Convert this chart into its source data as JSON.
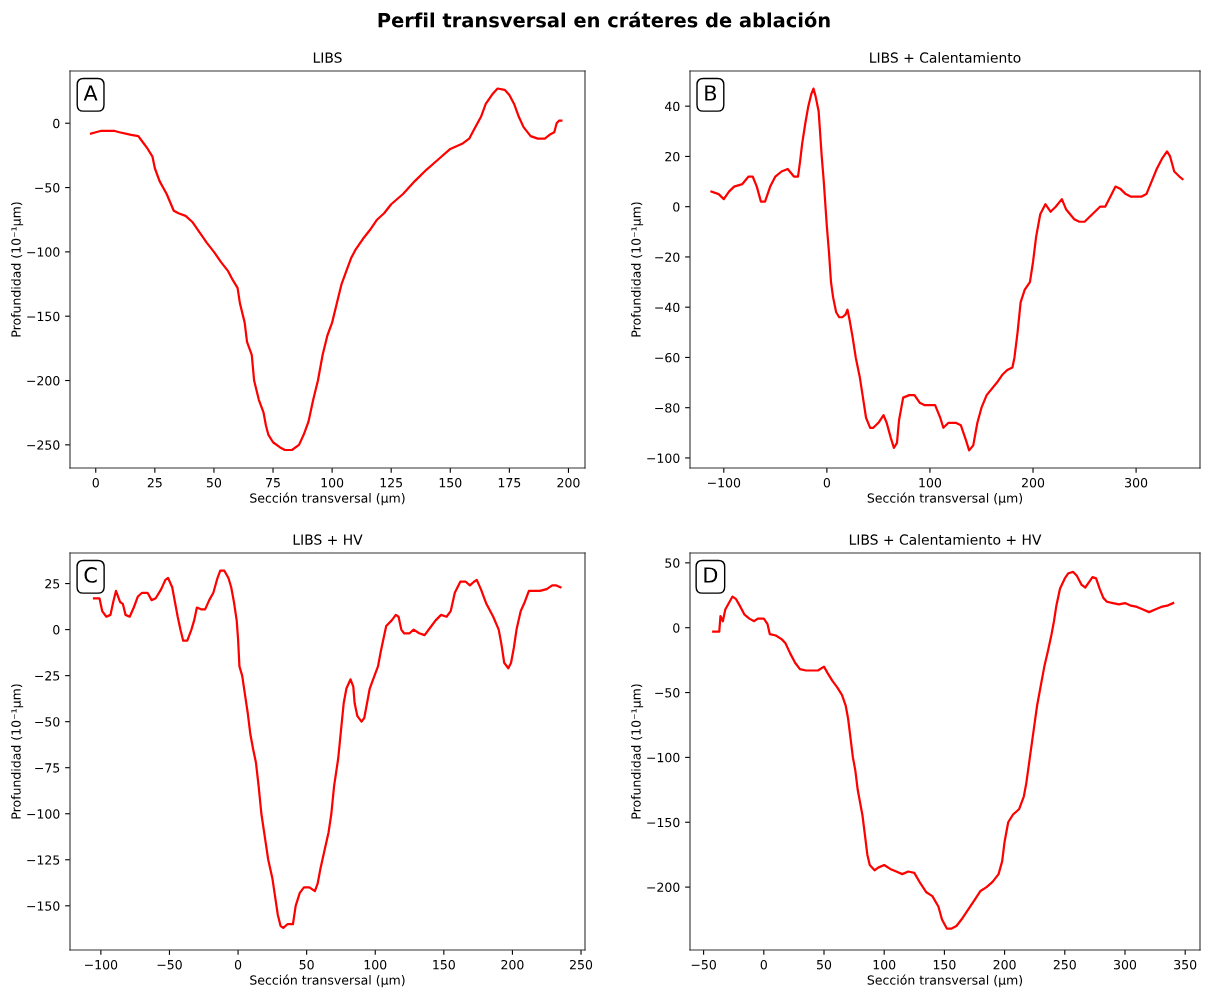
{
  "chart_data": [
    {
      "type": "line",
      "title": "LIBS",
      "xlabel": "Sección transversal (μm)",
      "ylabel": "Profundidad (10⁻¹μm)",
      "annotations": [
        "Perfil transversal en cráteres de ablación",
        "A"
      ],
      "xlim": [
        -10.9,
        207
      ],
      "ylim": [
        -268,
        40.6
      ],
      "xticks": [
        0,
        25,
        50,
        75,
        100,
        125,
        150,
        175,
        200
      ],
      "yticks": [
        -250,
        -200,
        -150,
        -100,
        -50,
        0
      ],
      "series": [
        {
          "color": "#ff0000",
          "x": [
            -2,
            0,
            2,
            8,
            10,
            15,
            18,
            20,
            22,
            24,
            25,
            27,
            30,
            33,
            35,
            38,
            41,
            44,
            47,
            50,
            53,
            56,
            58,
            60,
            61,
            63,
            64,
            66,
            67,
            69,
            71,
            72,
            73,
            75,
            78,
            80,
            83,
            86,
            88,
            90,
            92,
            94,
            96,
            98,
            100,
            102,
            104,
            106,
            108,
            110,
            113,
            116,
            119,
            122,
            125,
            130,
            135,
            140,
            145,
            150,
            155,
            158,
            160,
            163,
            165,
            168,
            170,
            173,
            175,
            177,
            179,
            181,
            184,
            187,
            190,
            192,
            194,
            195,
            196,
            197
          ],
          "values": [
            -8,
            -7,
            -6,
            -6,
            -7,
            -9,
            -10,
            -15,
            -20,
            -26,
            -35,
            -45,
            -55,
            -68,
            -70,
            -72,
            -77,
            -85,
            -93,
            -100,
            -108,
            -115,
            -122,
            -128,
            -140,
            -155,
            -170,
            -180,
            -200,
            -215,
            -225,
            -235,
            -242,
            -248,
            -252,
            -254,
            -254,
            -250,
            -242,
            -232,
            -215,
            -200,
            -180,
            -165,
            -155,
            -140,
            -125,
            -115,
            -105,
            -98,
            -90,
            -83,
            -75,
            -70,
            -63,
            -55,
            -45,
            -36,
            -28,
            -20,
            -16,
            -12,
            -5,
            5,
            15,
            23,
            27,
            26,
            22,
            15,
            5,
            -3,
            -10,
            -12,
            -12,
            -9,
            -7,
            0,
            2,
            2
          ]
        }
      ]
    },
    {
      "type": "line",
      "title": "LIBS + Calentamiento",
      "xlabel": "Sección transversal (μm)",
      "ylabel": "Profundidad (10⁻¹μm)",
      "annotations": [
        "B"
      ],
      "xlim": [
        -132.8,
        362
      ],
      "ylim": [
        -104,
        54
      ],
      "xticks": [
        -100,
        0,
        100,
        200,
        300
      ],
      "yticks": [
        -100,
        -80,
        -60,
        -40,
        -20,
        0,
        20,
        40
      ],
      "series": [
        {
          "color": "#ff0000",
          "x": [
            -112,
            -105,
            -100,
            -95,
            -90,
            -82,
            -76,
            -72,
            -68,
            -64,
            -60,
            -55,
            -50,
            -44,
            -38,
            -32,
            -28,
            -26,
            -24,
            -21,
            -18,
            -15,
            -13,
            -11,
            -8,
            -5,
            -3,
            0,
            2,
            4,
            6,
            9,
            12,
            15,
            18,
            20,
            22,
            25,
            28,
            32,
            35,
            38,
            42,
            45,
            50,
            55,
            58,
            62,
            65,
            68,
            70,
            74,
            80,
            85,
            90,
            95,
            105,
            110,
            113,
            118,
            125,
            130,
            135,
            138,
            142,
            146,
            150,
            155,
            165,
            170,
            175,
            180,
            182,
            185,
            188,
            192,
            197,
            200,
            203,
            207,
            212,
            217,
            222,
            228,
            232,
            240,
            245,
            250,
            255,
            260,
            265,
            270,
            275,
            280,
            285,
            290,
            295,
            305,
            310,
            315,
            320,
            325,
            330,
            333,
            337,
            342,
            345
          ],
          "values": [
            6,
            5,
            3,
            6,
            8,
            9,
            12,
            12,
            8,
            2,
            2,
            8,
            12,
            14,
            15,
            12,
            12,
            18,
            25,
            33,
            40,
            45,
            47,
            44,
            38,
            20,
            10,
            -8,
            -18,
            -30,
            -36,
            -42,
            -44,
            -44,
            -43,
            -41,
            -45,
            -52,
            -60,
            -68,
            -76,
            -84,
            -88,
            -88,
            -86,
            -83,
            -86,
            -92,
            -96,
            -94,
            -85,
            -76,
            -75,
            -75,
            -78,
            -79,
            -79,
            -84,
            -88,
            -86,
            -86,
            -87,
            -93,
            -97,
            -95,
            -86,
            -80,
            -75,
            -70,
            -67,
            -65,
            -64,
            -60,
            -50,
            -38,
            -33,
            -30,
            -22,
            -12,
            -3,
            1,
            -2,
            0,
            3,
            -1,
            -5,
            -6,
            -6,
            -4,
            -2,
            0,
            0,
            4,
            8,
            7,
            5,
            4,
            4,
            5,
            10,
            15,
            19,
            22,
            20,
            14,
            12,
            11
          ]
        }
      ]
    },
    {
      "type": "line",
      "title": "LIBS + HV",
      "xlabel": "Sección transversal (μm)",
      "ylabel": "Profundidad (10⁻¹μm)",
      "annotations": [
        "C"
      ],
      "xlim": [
        -122.5,
        252.9
      ],
      "ylim": [
        -174,
        41.6
      ],
      "xticks": [
        -100,
        -50,
        0,
        50,
        100,
        150,
        200,
        250
      ],
      "yticks": [
        -150,
        -125,
        -100,
        -75,
        -50,
        -25,
        0,
        25
      ],
      "series": [
        {
          "color": "#ff0000",
          "x": [
            -105,
            -101,
            -99,
            -96,
            -93,
            -91,
            -89,
            -86,
            -84,
            -82,
            -79,
            -76,
            -73,
            -70,
            -66,
            -63,
            -60,
            -56,
            -53,
            -51,
            -48,
            -46,
            -44,
            -42,
            -40,
            -37,
            -34,
            -32,
            -30,
            -27,
            -24,
            -21,
            -18,
            -15,
            -13,
            -10,
            -7,
            -5,
            -3,
            -1,
            0,
            1,
            3,
            5,
            7,
            9,
            11,
            13,
            15,
            17,
            20,
            22,
            25,
            27,
            29,
            31,
            33,
            36,
            40,
            42,
            45,
            48,
            52,
            56,
            58,
            60,
            63,
            66,
            68,
            70,
            73,
            75,
            77,
            79,
            82,
            84,
            85,
            87,
            90,
            92,
            94,
            96,
            99,
            102,
            104,
            106,
            108,
            112,
            115,
            117,
            119,
            121,
            125,
            128,
            132,
            136,
            140,
            144,
            148,
            152,
            155,
            158,
            162,
            166,
            169,
            172,
            174,
            177,
            181,
            186,
            190,
            192,
            194,
            197,
            199,
            201,
            203,
            206,
            209,
            212,
            220,
            225,
            229,
            232,
            235
          ],
          "values": [
            17,
            17,
            10,
            7,
            8,
            15,
            21,
            15,
            14,
            8,
            7,
            12,
            18,
            20,
            20,
            16,
            17,
            22,
            27,
            28,
            23,
            15,
            7,
            0,
            -6,
            -6,
            0,
            5,
            12,
            11,
            11,
            16,
            20,
            28,
            32,
            32,
            28,
            23,
            15,
            5,
            -5,
            -20,
            -25,
            -35,
            -45,
            -57,
            -65,
            -72,
            -85,
            -100,
            -115,
            -125,
            -135,
            -145,
            -155,
            -161,
            -162,
            -160,
            -160,
            -150,
            -143,
            -140,
            -140,
            -142,
            -138,
            -130,
            -120,
            -110,
            -100,
            -85,
            -70,
            -55,
            -40,
            -32,
            -27,
            -31,
            -40,
            -47,
            -50,
            -48,
            -40,
            -32,
            -26,
            -20,
            -12,
            -5,
            2,
            5,
            8,
            7,
            0,
            -2,
            -2,
            0,
            -2,
            -3,
            1,
            5,
            8,
            7,
            10,
            20,
            26,
            26,
            24,
            26,
            27,
            22,
            14,
            7,
            0,
            -8,
            -18,
            -21,
            -18,
            -10,
            0,
            10,
            15,
            21,
            21,
            22,
            24,
            24,
            23
          ]
        }
      ]
    },
    {
      "type": "line",
      "title": "LIBS + Calentamiento + HV",
      "xlabel": "Sección transversal (μm)",
      "ylabel": "Profundidad (10⁻¹μm)",
      "annotations": [
        "D"
      ],
      "xlim": [
        -61.3,
        362.3
      ],
      "ylim": [
        -248.5,
        57.6
      ],
      "xticks": [
        -50,
        0,
        50,
        100,
        150,
        200,
        250,
        300,
        350
      ],
      "yticks": [
        -200,
        -150,
        -100,
        -50,
        0,
        50
      ],
      "series": [
        {
          "color": "#ff0000",
          "x": [
            -42,
            -37,
            -36,
            -34,
            -32,
            -29,
            -26,
            -23,
            -20,
            -16,
            -12,
            -8,
            -5,
            0,
            3,
            5,
            10,
            15,
            18,
            22,
            26,
            30,
            35,
            45,
            50,
            53,
            57,
            61,
            65,
            68,
            70,
            72,
            74,
            76,
            78,
            80,
            82,
            84,
            86,
            88,
            92,
            95,
            100,
            105,
            110,
            115,
            120,
            125,
            130,
            135,
            140,
            145,
            148,
            152,
            156,
            160,
            165,
            170,
            175,
            180,
            185,
            190,
            195,
            198,
            200,
            203,
            207,
            212,
            216,
            218,
            221,
            224,
            227,
            230,
            233,
            236,
            239,
            241,
            243,
            246,
            250,
            253,
            257,
            260,
            264,
            267,
            270,
            273,
            276,
            279,
            282,
            285,
            290,
            295,
            300,
            305,
            310,
            315,
            320,
            325,
            330,
            335,
            340
          ],
          "values": [
            -3,
            -3,
            9,
            5,
            14,
            19,
            24,
            22,
            17,
            10,
            7,
            5,
            7,
            7,
            3,
            -5,
            -6,
            -9,
            -12,
            -20,
            -27,
            -32,
            -33,
            -33,
            -30,
            -35,
            -41,
            -46,
            -52,
            -60,
            -70,
            -85,
            -100,
            -110,
            -125,
            -135,
            -145,
            -160,
            -175,
            -183,
            -187,
            -185,
            -183,
            -186,
            -188,
            -190,
            -188,
            -189,
            -197,
            -204,
            -207,
            -215,
            -225,
            -232,
            -232,
            -230,
            -224,
            -217,
            -210,
            -203,
            -200,
            -196,
            -190,
            -180,
            -165,
            -150,
            -144,
            -140,
            -130,
            -120,
            -100,
            -80,
            -60,
            -45,
            -30,
            -18,
            -5,
            5,
            17,
            30,
            38,
            42,
            43,
            40,
            33,
            31,
            35,
            39,
            38,
            30,
            23,
            20,
            19,
            18,
            19,
            17,
            16,
            14,
            12,
            14,
            16,
            17,
            19
          ]
        }
      ]
    }
  ]
}
